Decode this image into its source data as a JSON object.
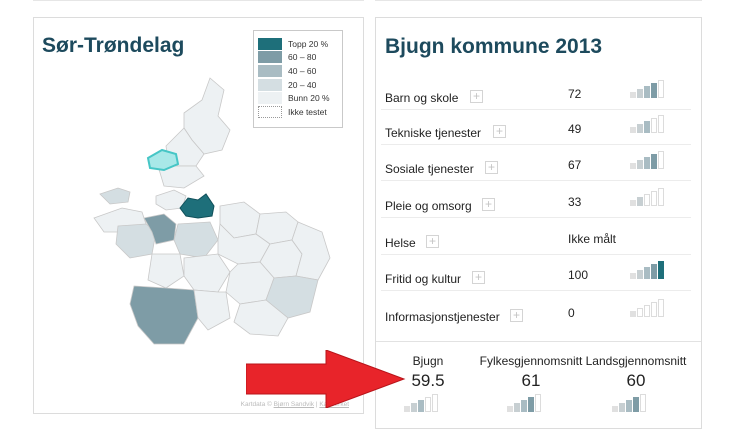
{
  "map_panel": {
    "title": "Sør-Trøndelag",
    "legend": [
      {
        "label": "Topp 20 %",
        "color": "#1e6f7a"
      },
      {
        "label": "60 – 80",
        "color": "#7e9ca6"
      },
      {
        "label": "40 – 60",
        "color": "#a9bcc3"
      },
      {
        "label": "20 – 40",
        "color": "#d4dee2"
      },
      {
        "label": "Bunn 20 %",
        "color": "#edf1f3"
      },
      {
        "label": "Ikke testet",
        "color": "none"
      }
    ],
    "credit": {
      "prefix": "Kartdata ©",
      "author": "Bjørn Sandvik",
      "sep": " | ",
      "link": "Kartverket"
    }
  },
  "kommune_panel": {
    "title": "Bjugn kommune 2013",
    "rows": [
      {
        "label": "Barn og skole",
        "value": "72",
        "level": 4
      },
      {
        "label": "Tekniske tjenester",
        "value": "49",
        "level": 3
      },
      {
        "label": "Sosiale tjenester",
        "value": "67",
        "level": 4
      },
      {
        "label": "Pleie og omsorg",
        "value": "33",
        "level": 2
      },
      {
        "label": "Helse",
        "value": "Ikke målt",
        "level": 0
      },
      {
        "label": "Fritid og kultur",
        "value": "100",
        "level": 5
      },
      {
        "label": "Informasjonstjenester",
        "value": "0",
        "level": 1
      }
    ],
    "averages": [
      {
        "label": "Bjugn",
        "value": "59.5",
        "level": 3
      },
      {
        "label": "Fylkesgjennomsnitt",
        "value": "61",
        "level": 4
      },
      {
        "label": "Landsgjennomsnitt",
        "value": "60",
        "level": 4
      }
    ]
  },
  "colors": {
    "title": "#1d4a5d",
    "highlight": "#46c6c6",
    "arrow": "#e8242a"
  }
}
